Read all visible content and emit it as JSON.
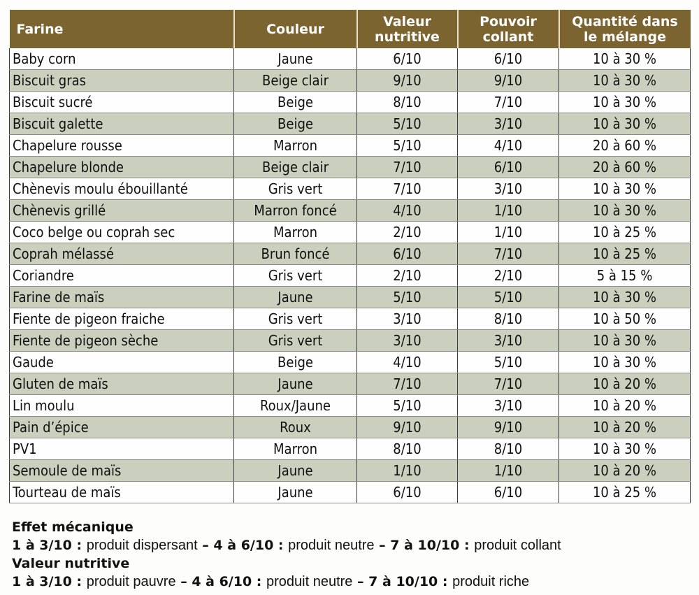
{
  "table": {
    "headers": [
      "Farine",
      "Couleur",
      "Valeur nutritive",
      "Pouvoir collant",
      "Quantité dans le mélange"
    ],
    "header_lines": [
      [
        "Farine"
      ],
      [
        "Couleur"
      ],
      [
        "Valeur",
        "nutritive"
      ],
      [
        "Pouvoir",
        "collant"
      ],
      [
        "Quantité dans",
        "le mélange"
      ]
    ],
    "rows": [
      [
        "Baby corn",
        "Jaune",
        "6/10",
        "6/10",
        "10 à 30 %"
      ],
      [
        "Biscuit gras",
        "Beige clair",
        "9/10",
        "9/10",
        "10 à 30 %"
      ],
      [
        "Biscuit sucré",
        "Beige",
        "8/10",
        "7/10",
        "10 à 30 %"
      ],
      [
        "Biscuit galette",
        "Beige",
        "5/10",
        "3/10",
        "10 à 30 %"
      ],
      [
        "Chapelure rousse",
        "Marron",
        "5/10",
        "4/10",
        "20 à 60 %"
      ],
      [
        "Chapelure blonde",
        "Beige clair",
        "7/10",
        "6/10",
        "20 à 60 %"
      ],
      [
        "Chènevis moulu ébouillanté",
        "Gris vert",
        "7/10",
        "3/10",
        "10 à 30 %"
      ],
      [
        "Chènevis grillé",
        "Marron foncé",
        "4/10",
        "1/10",
        "10 à 30 %"
      ],
      [
        "Coco belge ou coprah sec",
        "Marron",
        "2/10",
        "1/10",
        "10 à 25 %"
      ],
      [
        "Coprah mélassé",
        "Brun foncé",
        "6/10",
        "7/10",
        "10 à 25 %"
      ],
      [
        "Coriandre",
        "Gris vert",
        "2/10",
        "2/10",
        "5 à 15 %"
      ],
      [
        "Farine de maïs",
        "Jaune",
        "5/10",
        "5/10",
        "10 à 30 %"
      ],
      [
        "Fiente de pigeon fraiche",
        "Gris vert",
        "3/10",
        "8/10",
        "10 à 50 %"
      ],
      [
        "Fiente de pigeon sèche",
        "Gris vert",
        "3/10",
        "3/10",
        "10 à 30 %"
      ],
      [
        "Gaude",
        "Beige",
        "4/10",
        "5/10",
        "10 à 30 %"
      ],
      [
        "Gluten de maïs",
        "Jaune",
        "7/10",
        "7/10",
        "10 à 20 %"
      ],
      [
        "Lin moulu",
        "Roux/Jaune",
        "5/10",
        "3/10",
        "10 à 20 %"
      ],
      [
        "Pain d’épice",
        "Roux",
        "9/10",
        "9/10",
        "10 à 20 %"
      ],
      [
        "PV1",
        "Marron",
        "8/10",
        "8/10",
        "10 à 30 %"
      ],
      [
        "Semoule de maïs",
        "Jaune",
        "1/10",
        "1/10",
        "10 à 20 %"
      ],
      [
        "Tourteau de maïs",
        "Jaune",
        "6/10",
        "6/10",
        "10 à 25 %"
      ]
    ]
  },
  "legend": {
    "effet_title": "Effet mécanique",
    "effet": [
      {
        "range": "1 à 3/10",
        "sep": " : ",
        "text": "produit dispersant",
        "dash": " – "
      },
      {
        "range": "4 à 6/10",
        "sep": " : ",
        "text": "produit neutre",
        "dash": " – "
      },
      {
        "range": "7 à 10/10",
        "sep": " : ",
        "text": "produit collant",
        "dash": ""
      }
    ],
    "valeur_title": "Valeur nutritive",
    "valeur": [
      {
        "range": "1 à 3/10",
        "sep": " : ",
        "text": "produit pauvre",
        "dash": " – "
      },
      {
        "range": "4 à 6/10",
        "sep": " : ",
        "text": "produit neutre",
        "dash": " – "
      },
      {
        "range": "7 à 10/10",
        "sep": " : ",
        "text": "produit riche",
        "dash": ""
      }
    ]
  },
  "colors": {
    "header_bg": "#7c6431",
    "odd_row": "#cbcfbe",
    "even_row": "#fefefe"
  }
}
